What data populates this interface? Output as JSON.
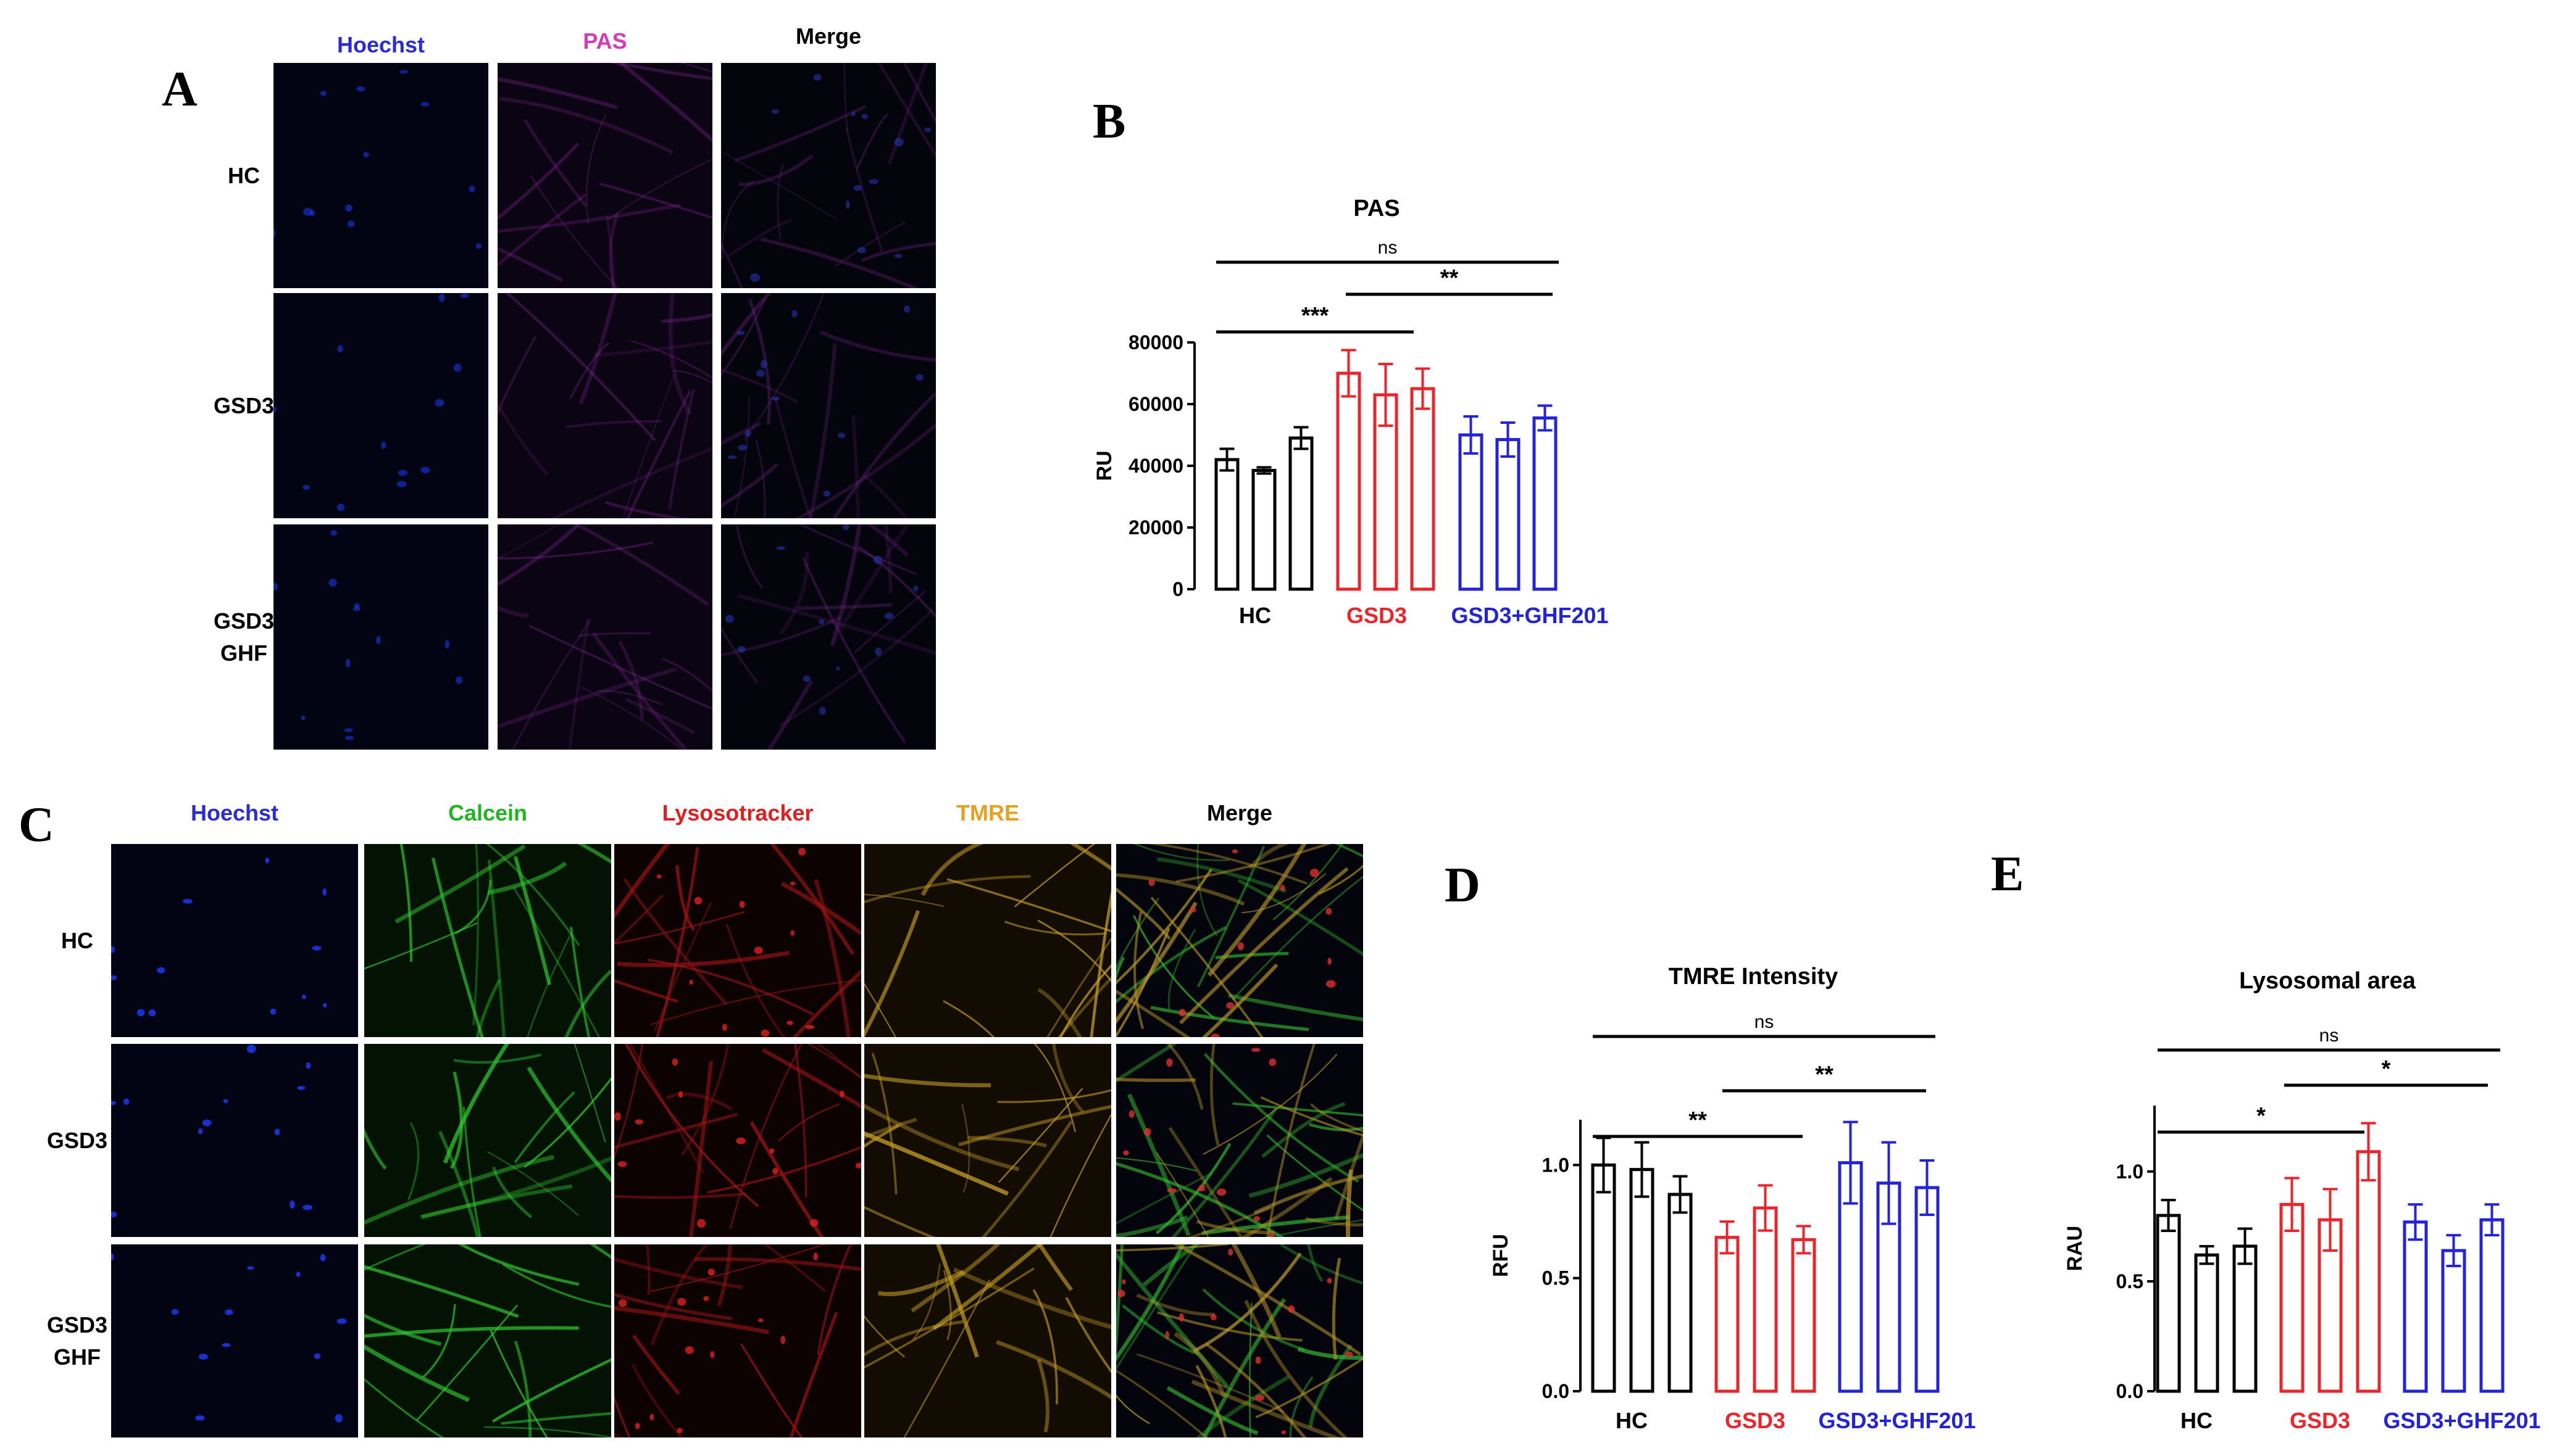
{
  "panels": {
    "a": {
      "letter": "A",
      "columns": [
        {
          "label": "Hoechst",
          "color": "#2a2ad6"
        },
        {
          "label": "PAS",
          "color": "#d63ab8"
        },
        {
          "label": "Merge",
          "color": "#000000"
        }
      ],
      "rows": [
        {
          "label": "HC"
        },
        {
          "label": "GSD3"
        },
        {
          "label": "GSD3 GHF",
          "lines": [
            "GSD3",
            "GHF"
          ]
        }
      ]
    },
    "b": {
      "letter": "B"
    },
    "c": {
      "letter": "C",
      "columns": [
        {
          "label": "Hoechst",
          "color": "#2a2ad6"
        },
        {
          "label": "Calcein",
          "color": "#22b522"
        },
        {
          "label": "Lysosotracker",
          "color": "#e02020"
        },
        {
          "label": "TMRE",
          "color": "#e8a020"
        },
        {
          "label": "Merge",
          "color": "#000000"
        }
      ],
      "rows": [
        {
          "label": "HC"
        },
        {
          "label": "GSD3"
        },
        {
          "label": "GSD3 GHF",
          "lines": [
            "GSD3",
            "GHF"
          ]
        }
      ]
    },
    "d": {
      "letter": "D"
    },
    "e": {
      "letter": "E"
    }
  },
  "chart_data": [
    {
      "id": "b",
      "type": "bar",
      "title": "PAS",
      "ylabel": "RU",
      "ylim": [
        0,
        80000
      ],
      "yticks": [
        "0",
        "20000",
        "40000",
        "60000",
        "80000"
      ],
      "ytick_values": [
        0,
        20000,
        40000,
        60000,
        80000
      ],
      "groups": [
        {
          "label": "HC",
          "color": "#000000",
          "values": [
            42000,
            38500,
            49000
          ],
          "errors": [
            3500,
            1000,
            3500
          ]
        },
        {
          "label": "GSD3",
          "color": "#e8262b",
          "values": [
            70000,
            63000,
            65000
          ],
          "errors": [
            7500,
            10000,
            6500
          ]
        },
        {
          "label": "GSD3+GHF201",
          "color": "#2323d8",
          "values": [
            50000,
            48500,
            55500
          ],
          "errors": [
            6000,
            5500,
            4000
          ]
        }
      ],
      "brackets": [
        {
          "text": "ns",
          "from": 0,
          "to": 2
        },
        {
          "text": "**",
          "from": 1,
          "to": 2
        },
        {
          "text": "***",
          "from": 0,
          "to": 1
        }
      ]
    },
    {
      "id": "d",
      "type": "bar",
      "title": "TMRE Intensity",
      "ylabel": "RFU",
      "ylim": [
        0,
        1.2
      ],
      "yticks": [
        "0.0",
        "0.5",
        "1.0"
      ],
      "ytick_values": [
        0,
        0.5,
        1.0
      ],
      "groups": [
        {
          "label": "HC",
          "color": "#000000",
          "values": [
            1.0,
            0.98,
            0.87
          ],
          "errors": [
            0.12,
            0.12,
            0.08
          ]
        },
        {
          "label": "GSD3",
          "color": "#e8262b",
          "values": [
            0.68,
            0.81,
            0.67
          ],
          "errors": [
            0.07,
            0.1,
            0.06
          ]
        },
        {
          "label": "GSD3+GHF201",
          "color": "#2323d8",
          "values": [
            1.01,
            0.92,
            0.9
          ],
          "errors": [
            0.18,
            0.18,
            0.12
          ]
        }
      ],
      "brackets": [
        {
          "text": "ns",
          "from": 0,
          "to": 2
        },
        {
          "text": "**",
          "from": 1,
          "to": 2
        },
        {
          "text": "**",
          "from": 0,
          "to": 1
        }
      ]
    },
    {
      "id": "e",
      "type": "bar",
      "title": "Lysosomal area",
      "ylabel": "RAU",
      "ylim": [
        0,
        1.3
      ],
      "yticks": [
        "0.0",
        "0.5",
        "1.0"
      ],
      "ytick_values": [
        0,
        0.5,
        1.0
      ],
      "groups": [
        {
          "label": "HC",
          "color": "#000000",
          "values": [
            0.8,
            0.62,
            0.66
          ],
          "errors": [
            0.07,
            0.04,
            0.08
          ]
        },
        {
          "label": "GSD3",
          "color": "#e8262b",
          "values": [
            0.85,
            0.78,
            1.09
          ],
          "errors": [
            0.12,
            0.14,
            0.13
          ]
        },
        {
          "label": "GSD3+GHF201",
          "color": "#2323d8",
          "values": [
            0.77,
            0.64,
            0.78
          ],
          "errors": [
            0.08,
            0.07,
            0.07
          ]
        }
      ],
      "brackets": [
        {
          "text": "ns",
          "from": 0,
          "to": 2
        },
        {
          "text": "*",
          "from": 1,
          "to": 2
        },
        {
          "text": "*",
          "from": 0,
          "to": 1
        }
      ]
    }
  ]
}
